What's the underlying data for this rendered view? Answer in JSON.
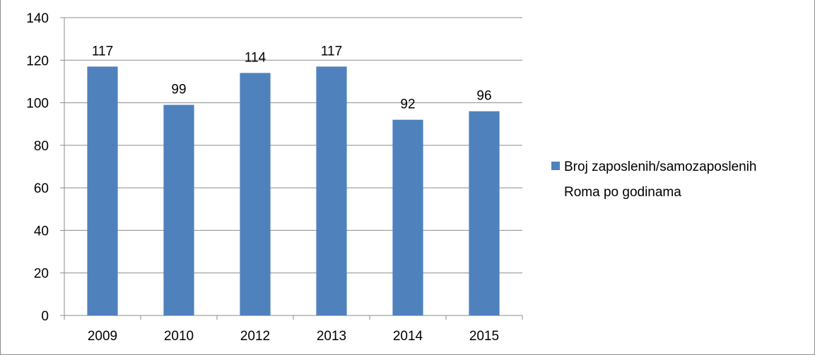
{
  "chart_data": {
    "type": "bar",
    "categories": [
      "2009",
      "2010",
      "2012",
      "2013",
      "2014",
      "2015"
    ],
    "series": [
      {
        "name": "Broj zaposlenih/samozaposlenih Roma po godinama",
        "values": [
          117,
          99,
          114,
          117,
          92,
          96
        ],
        "color": "#4f81bd"
      }
    ],
    "ylim": [
      0,
      140
    ],
    "yticks": [
      0,
      20,
      40,
      60,
      80,
      100,
      120,
      140
    ],
    "grid": true,
    "data_labels": true,
    "legend": {
      "position": "right",
      "lines": [
        "Broj zaposlenih/samozaposlenih",
        "Roma po godinama"
      ]
    },
    "colors": {
      "bar": "#4f81bd",
      "grid": "#8c8c8c",
      "axis": "#8c8c8c"
    }
  }
}
